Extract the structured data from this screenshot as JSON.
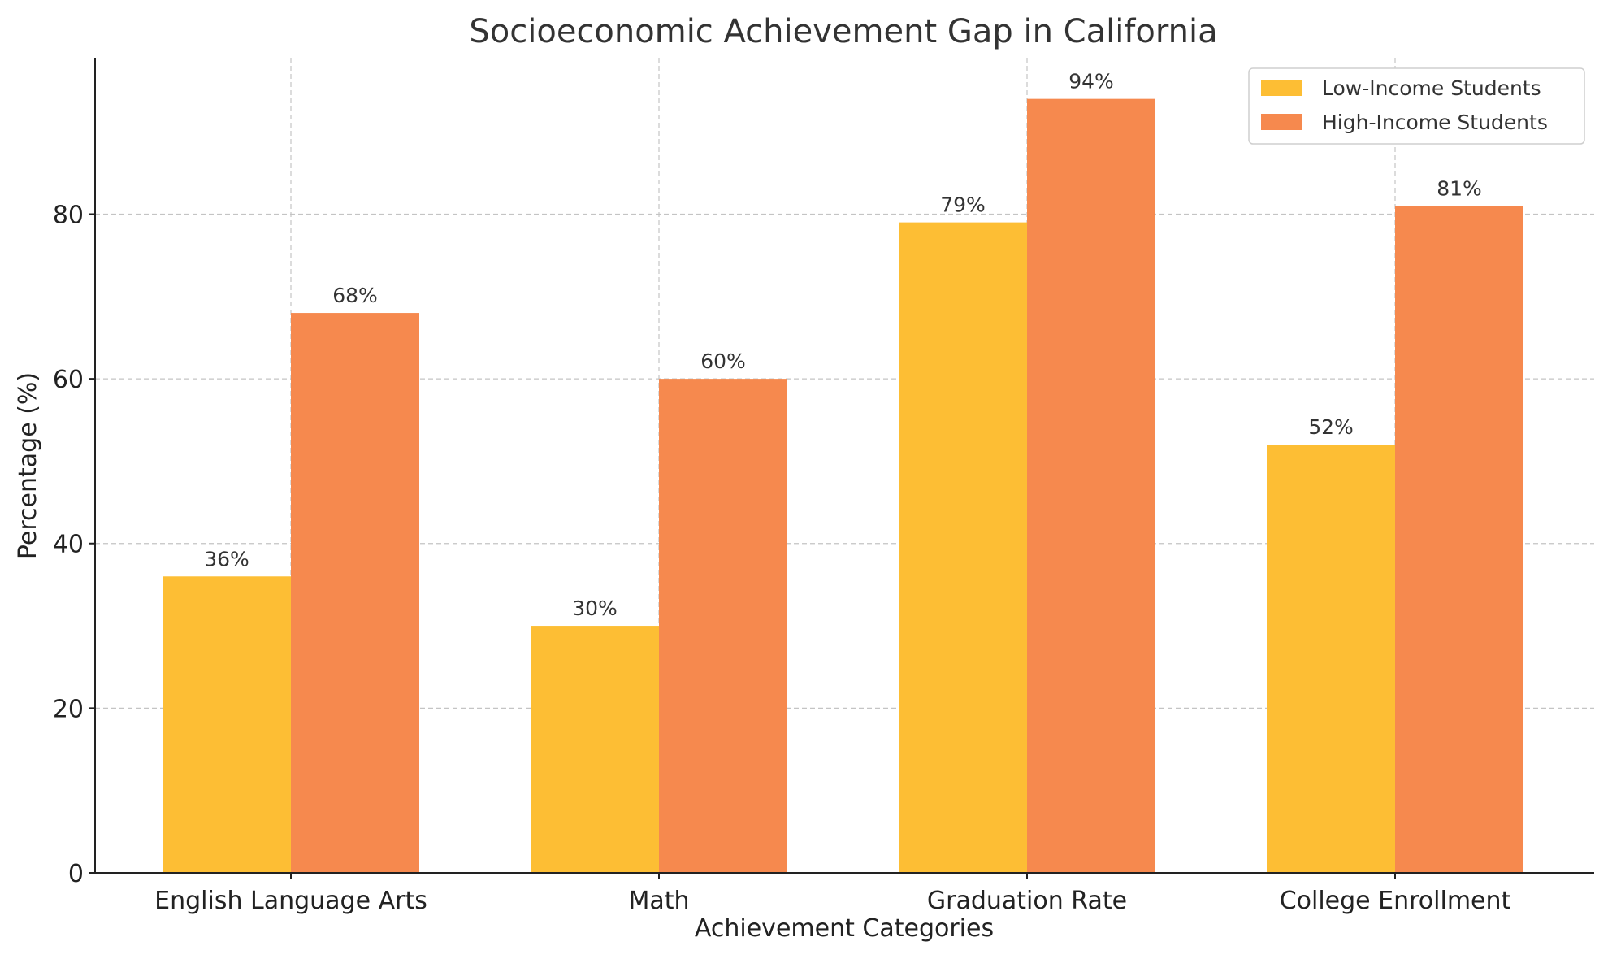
{
  "chart_data": {
    "type": "bar",
    "title": "Socioeconomic Achievement Gap in California",
    "xlabel": "Achievement Categories",
    "ylabel": "Percentage (%)",
    "categories": [
      "English Language Arts",
      "Math",
      "Graduation Rate",
      "College Enrollment"
    ],
    "series": [
      {
        "name": "Low-Income Students",
        "values": [
          36,
          30,
          79,
          52
        ],
        "color": "#FDBE34",
        "labels": [
          "36%",
          "30%",
          "79%",
          "52%"
        ]
      },
      {
        "name": "High-Income Students",
        "values": [
          68,
          60,
          94,
          81
        ],
        "color": "#F6894E",
        "labels": [
          "68%",
          "60%",
          "94%",
          "81%"
        ]
      }
    ],
    "ylim": [
      0,
      99
    ],
    "yticks": [
      0,
      20,
      40,
      60,
      80
    ],
    "ytick_labels": [
      "0",
      "20",
      "40",
      "60",
      "80"
    ],
    "grid": true,
    "legend_position": "top-right"
  }
}
